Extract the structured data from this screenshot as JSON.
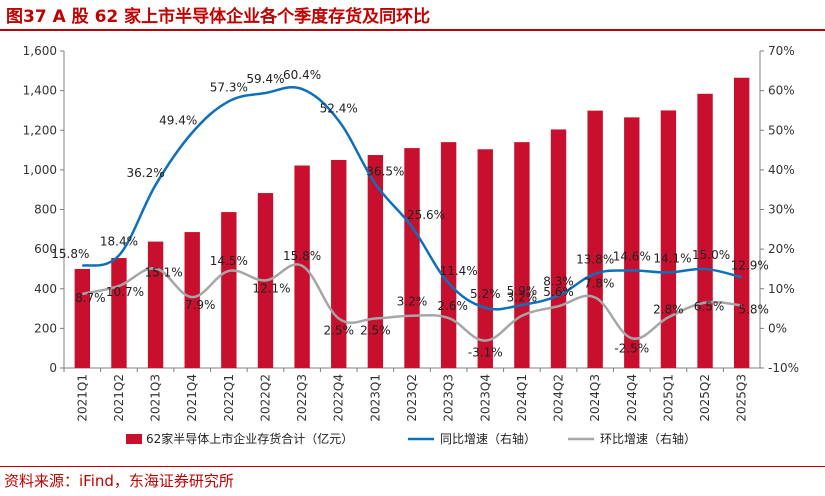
{
  "header": {
    "title": "图37  A 股 62 家上市半导体企业各个季度存货及同环比"
  },
  "footer": {
    "source": "资料来源：iFind，东海证券研究所"
  },
  "colors": {
    "brand": "#c00000",
    "bar": "#c8102e",
    "yoy_line": "#0e6fba",
    "qoq_line": "#a6a6a6"
  },
  "chart_data": {
    "type": "bar",
    "title": "",
    "categories": [
      "2021Q1",
      "2021Q2",
      "2021Q3",
      "2021Q4",
      "2022Q1",
      "2022Q2",
      "2022Q3",
      "2022Q4",
      "2023Q1",
      "2023Q2",
      "2023Q3",
      "2023Q4",
      "2024Q1",
      "2024Q2",
      "2024Q3",
      "2024Q4",
      "2025Q1",
      "2025Q2",
      "2025Q3"
    ],
    "y_left": {
      "lim": [
        0,
        1600
      ],
      "ticks": [
        "0",
        "200",
        "400",
        "600",
        "800",
        "1,000",
        "1,200",
        "1,400",
        "1,600"
      ]
    },
    "y_right": {
      "lim": [
        -10,
        70
      ],
      "ticks": [
        "-10%",
        "0%",
        "10%",
        "20%",
        "30%",
        "40%",
        "50%",
        "60%",
        "70%"
      ]
    },
    "grid": false,
    "legend_position": "bottom",
    "series": [
      {
        "name": "62家半导体上市企业存货合计（亿元）",
        "kind": "bar",
        "axis": "left",
        "values": [
          500,
          555,
          638,
          686,
          787,
          883,
          1022,
          1050,
          1075,
          1110,
          1140,
          1104,
          1140,
          1204,
          1299,
          1265,
          1300,
          1384,
          1465
        ]
      },
      {
        "name": "同比增速（右轴）",
        "kind": "line",
        "axis": "right",
        "values": [
          15.8,
          18.4,
          36.2,
          49.4,
          57.3,
          59.4,
          60.4,
          52.4,
          36.5,
          25.6,
          11.4,
          5.2,
          5.9,
          8.3,
          13.8,
          14.6,
          14.1,
          15.0,
          12.9
        ],
        "labels": [
          "15.8%",
          "18.4%",
          "36.2%",
          "49.4%",
          "57.3%",
          "59.4%",
          "60.4%",
          "52.4%",
          "36.5%",
          "25.6%",
          "11.4%",
          "5.2%",
          "5.9%",
          "8.3%",
          "13.8%",
          "14.6%",
          "14.1%",
          "15.0%",
          "12.9%"
        ]
      },
      {
        "name": "环比增速（右轴）",
        "kind": "line",
        "axis": "right",
        "values": [
          8.7,
          10.7,
          15.1,
          7.9,
          14.5,
          12.1,
          15.8,
          2.5,
          2.5,
          3.2,
          2.6,
          -3.1,
          3.2,
          5.6,
          7.8,
          -2.5,
          2.8,
          6.5,
          5.8
        ],
        "labels": [
          "8.7%",
          "10.7%",
          "15.1%",
          "7.9%",
          "14.5%",
          "12.1%",
          "15.8%",
          "2.5%",
          "2.5%",
          "3.2%",
          "2.6%",
          "-3.1%",
          "3.2%",
          "5.6%",
          "7.8%",
          "-2.5%",
          "2.8%",
          "6.5%",
          "5.8%"
        ]
      }
    ]
  }
}
